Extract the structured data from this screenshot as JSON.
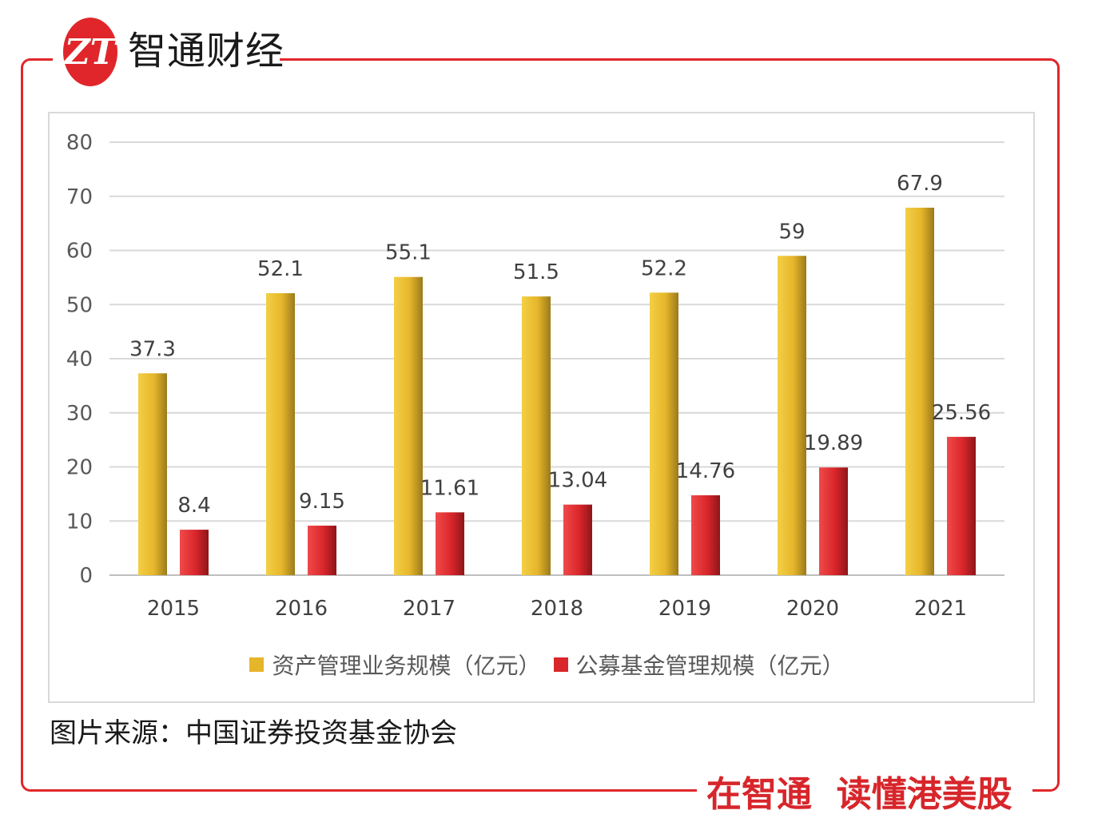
{
  "header": {
    "brand_name": "智通财经",
    "slogan": "在智通  读懂港美股"
  },
  "colors": {
    "frame": "#e0262a",
    "asset_mgmt_bar": "#e6b62a",
    "public_fund_bar": "#d9262b"
  },
  "chart_data": {
    "type": "bar",
    "categories": [
      "2015",
      "2016",
      "2017",
      "2018",
      "2019",
      "2020",
      "2021"
    ],
    "series": [
      {
        "name": "资产管理业务规模（亿元）",
        "values": [
          37.3,
          52.1,
          55.1,
          51.5,
          52.2,
          59,
          67.9
        ],
        "labels": [
          "37.3",
          "52.1",
          "55.1",
          "51.5",
          "52.2",
          "59",
          "67.9"
        ]
      },
      {
        "name": "公募基金管理规模（亿元）",
        "values": [
          8.4,
          9.15,
          11.61,
          13.04,
          14.76,
          19.89,
          25.56
        ],
        "labels": [
          "8.4",
          "9.15",
          "11.61",
          "13.04",
          "14.76",
          "19.89",
          "25.56"
        ]
      }
    ],
    "ylim": [
      0,
      80
    ],
    "yticks": [
      "0",
      "10",
      "20",
      "30",
      "40",
      "50",
      "60",
      "70",
      "80"
    ],
    "grid": true,
    "legend_position": "bottom",
    "xlabel": "",
    "ylabel": ""
  },
  "footer": {
    "source": "图片来源：中国证券投资基金协会"
  }
}
